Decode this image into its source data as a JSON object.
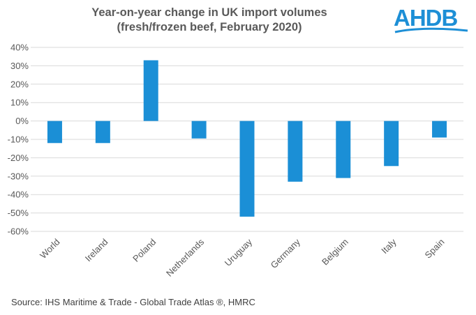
{
  "title_line1": "Year-on-year change in UK import volumes",
  "title_line2": "(fresh/frozen beef, February 2020)",
  "logo": {
    "text": "AHDB",
    "color": "#1d8fd6",
    "icon": "ahdb-logo"
  },
  "source": "Source: IHS Maritime & Trade - Global Trade Atlas ®, HMRC",
  "colors": {
    "bar": "#1b8fd6",
    "grid": "#d9d9d9",
    "text": "#595959"
  },
  "chart_data": {
    "type": "bar",
    "categories": [
      "World",
      "Ireland",
      "Poland",
      "Netherlands",
      "Uruguay",
      "Germany",
      "Belgium",
      "Italy",
      "Spain"
    ],
    "values": [
      -12,
      -12,
      33,
      -9.5,
      -52,
      -33,
      -31,
      -24.5,
      -9
    ],
    "ylim": [
      -60,
      40
    ],
    "yticks": [
      40,
      30,
      20,
      10,
      0,
      -10,
      -20,
      -30,
      -40,
      -50,
      -60
    ],
    "ytick_labels": [
      "40%",
      "30%",
      "20%",
      "10%",
      "0%",
      "-10%",
      "-20%",
      "-30%",
      "-40%",
      "-50%",
      "-60%"
    ],
    "grid": true,
    "legend": "none",
    "xlabel": "",
    "ylabel": ""
  }
}
